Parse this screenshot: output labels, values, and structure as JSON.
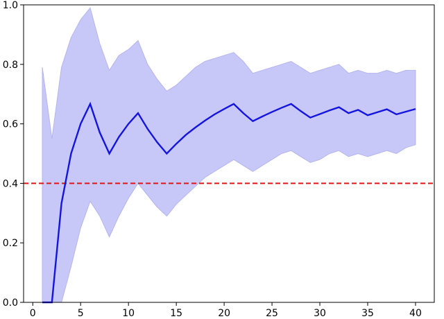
{
  "chart_data": {
    "type": "line",
    "title": "",
    "xlabel": "",
    "ylabel": "",
    "xlim": [
      -0.96,
      41.96
    ],
    "ylim": [
      0,
      1.0
    ],
    "x_ticks": [
      0,
      5,
      10,
      15,
      20,
      25,
      30,
      35,
      40
    ],
    "y_ticks": [
      0.0,
      0.2,
      0.4,
      0.6,
      0.8,
      1.0
    ],
    "x_tick_labels": [
      "0",
      "5",
      "10",
      "15",
      "20",
      "25",
      "30",
      "35",
      "40"
    ],
    "y_tick_labels": [
      "0.0",
      "0.2",
      "0.4",
      "0.6",
      "0.8",
      "1.0"
    ],
    "grid": false,
    "legend": "none",
    "colors": {
      "line": "#1414e0",
      "band_fill": "#c8c8f8",
      "band_edge": "#b4b4f0",
      "reference_line": "#e01414"
    },
    "series": [
      {
        "type": "line",
        "x": [
          1,
          2,
          3,
          4,
          5,
          6,
          7,
          8,
          9,
          10,
          11,
          12,
          13,
          14,
          15,
          16,
          17,
          18,
          19,
          20,
          21,
          22,
          23,
          24,
          25,
          26,
          27,
          28,
          29,
          30,
          31,
          32,
          33,
          34,
          35,
          36,
          37,
          38,
          39,
          40
        ],
        "values": [
          0.0,
          0.0,
          0.333,
          0.5,
          0.6,
          0.667,
          0.571,
          0.5,
          0.556,
          0.6,
          0.636,
          0.583,
          0.538,
          0.5,
          0.533,
          0.563,
          0.588,
          0.611,
          0.632,
          0.65,
          0.667,
          0.636,
          0.609,
          0.625,
          0.64,
          0.654,
          0.667,
          0.643,
          0.621,
          0.633,
          0.645,
          0.656,
          0.636,
          0.647,
          0.629,
          0.639,
          0.649,
          0.632,
          0.641,
          0.65
        ]
      },
      {
        "type": "band",
        "x": [
          1,
          2,
          3,
          4,
          5,
          6,
          7,
          8,
          9,
          10,
          11,
          12,
          13,
          14,
          15,
          16,
          17,
          18,
          19,
          20,
          21,
          22,
          23,
          24,
          25,
          26,
          27,
          28,
          29,
          30,
          31,
          32,
          33,
          34,
          35,
          36,
          37,
          38,
          39,
          40
        ],
        "lower": [
          0.0,
          0.0,
          0.0,
          0.12,
          0.25,
          0.34,
          0.29,
          0.22,
          0.29,
          0.35,
          0.4,
          0.36,
          0.32,
          0.29,
          0.33,
          0.36,
          0.39,
          0.42,
          0.44,
          0.46,
          0.48,
          0.46,
          0.44,
          0.46,
          0.48,
          0.5,
          0.51,
          0.49,
          0.47,
          0.48,
          0.5,
          0.51,
          0.49,
          0.5,
          0.49,
          0.5,
          0.51,
          0.5,
          0.52,
          0.53
        ],
        "upper": [
          0.79,
          0.55,
          0.79,
          0.89,
          0.95,
          0.99,
          0.87,
          0.78,
          0.83,
          0.85,
          0.88,
          0.8,
          0.75,
          0.71,
          0.73,
          0.76,
          0.79,
          0.81,
          0.82,
          0.83,
          0.84,
          0.81,
          0.77,
          0.78,
          0.79,
          0.8,
          0.81,
          0.79,
          0.77,
          0.78,
          0.79,
          0.8,
          0.77,
          0.78,
          0.77,
          0.77,
          0.78,
          0.77,
          0.78,
          0.78
        ]
      },
      {
        "type": "hline",
        "y": 0.4,
        "style": "dashed"
      }
    ]
  }
}
